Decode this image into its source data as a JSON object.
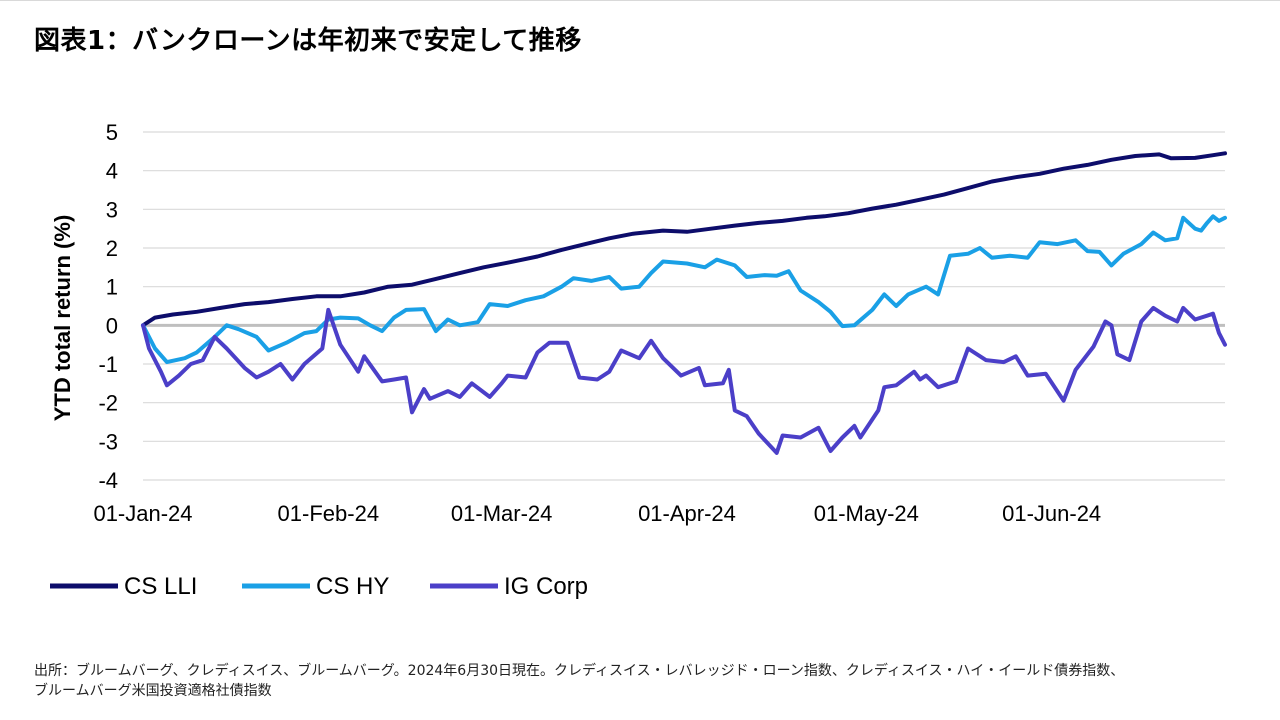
{
  "title": "図表1：バンクローンは年初来で安定して推移",
  "source_lines": [
    "出所：ブルームバーグ、クレディスイス、ブルームバーグ。2024年6月30日現在。クレディスイス・レバレッジド・ローン指数、クレディスイス・ハイ・イールド債券指数、",
    "ブルームバーグ米国投資適格社債指数"
  ],
  "chart_data": {
    "type": "line",
    "title": "図表1：バンクローンは年初来で安定して推移",
    "ylabel": "YTD total return (%)",
    "xlabel": "",
    "ylim": [
      -4,
      5
    ],
    "yticks": [
      -4,
      -3,
      -2,
      -1,
      0,
      1,
      2,
      3,
      4,
      5
    ],
    "xlim": [
      "2024-01-01",
      "2024-06-30"
    ],
    "xticks": [
      "01-Jan-24",
      "01-Feb-24",
      "01-Mar-24",
      "01-Apr-24",
      "01-May-24",
      "01-Jun-24"
    ],
    "grid": true,
    "legend_position": "bottom",
    "series": [
      {
        "name": "CS LLI",
        "color": "#0d0d6b",
        "points": [
          [
            "2024-01-01",
            0
          ],
          [
            "2024-01-03",
            0.2
          ],
          [
            "2024-01-06",
            0.28
          ],
          [
            "2024-01-10",
            0.35
          ],
          [
            "2024-01-14",
            0.45
          ],
          [
            "2024-01-18",
            0.55
          ],
          [
            "2024-01-22",
            0.6
          ],
          [
            "2024-01-26",
            0.68
          ],
          [
            "2024-01-30",
            0.75
          ],
          [
            "2024-02-03",
            0.75
          ],
          [
            "2024-02-07",
            0.85
          ],
          [
            "2024-02-11",
            1.0
          ],
          [
            "2024-02-15",
            1.05
          ],
          [
            "2024-02-19",
            1.2
          ],
          [
            "2024-02-23",
            1.35
          ],
          [
            "2024-02-27",
            1.5
          ],
          [
            "2024-03-02",
            1.62
          ],
          [
            "2024-03-07",
            1.78
          ],
          [
            "2024-03-11",
            1.95
          ],
          [
            "2024-03-15",
            2.1
          ],
          [
            "2024-03-19",
            2.25
          ],
          [
            "2024-03-23",
            2.37
          ],
          [
            "2024-03-28",
            2.45
          ],
          [
            "2024-04-01",
            2.42
          ],
          [
            "2024-04-05",
            2.5
          ],
          [
            "2024-04-09",
            2.58
          ],
          [
            "2024-04-13",
            2.65
          ],
          [
            "2024-04-17",
            2.7
          ],
          [
            "2024-04-21",
            2.78
          ],
          [
            "2024-04-24",
            2.82
          ],
          [
            "2024-04-28",
            2.9
          ],
          [
            "2024-05-02",
            3.02
          ],
          [
            "2024-05-06",
            3.12
          ],
          [
            "2024-05-10",
            3.25
          ],
          [
            "2024-05-14",
            3.38
          ],
          [
            "2024-05-18",
            3.55
          ],
          [
            "2024-05-22",
            3.72
          ],
          [
            "2024-05-26",
            3.83
          ],
          [
            "2024-05-30",
            3.92
          ],
          [
            "2024-06-03",
            4.05
          ],
          [
            "2024-06-07",
            4.15
          ],
          [
            "2024-06-11",
            4.28
          ],
          [
            "2024-06-15",
            4.38
          ],
          [
            "2024-06-19",
            4.42
          ],
          [
            "2024-06-21",
            4.32
          ],
          [
            "2024-06-25",
            4.33
          ],
          [
            "2024-06-28",
            4.4
          ],
          [
            "2024-06-30",
            4.45
          ]
        ]
      },
      {
        "name": "CS HY",
        "color": "#1aa0e6",
        "points": [
          [
            "2024-01-01",
            0
          ],
          [
            "2024-01-03",
            -0.6
          ],
          [
            "2024-01-05",
            -0.95
          ],
          [
            "2024-01-08",
            -0.85
          ],
          [
            "2024-01-10",
            -0.7
          ],
          [
            "2024-01-13",
            -0.3
          ],
          [
            "2024-01-15",
            0.0
          ],
          [
            "2024-01-17",
            -0.1
          ],
          [
            "2024-01-20",
            -0.3
          ],
          [
            "2024-01-22",
            -0.65
          ],
          [
            "2024-01-25",
            -0.45
          ],
          [
            "2024-01-28",
            -0.2
          ],
          [
            "2024-01-30",
            -0.15
          ],
          [
            "2024-02-01",
            0.15
          ],
          [
            "2024-02-03",
            0.2
          ],
          [
            "2024-02-06",
            0.18
          ],
          [
            "2024-02-08",
            0.0
          ],
          [
            "2024-02-10",
            -0.15
          ],
          [
            "2024-02-12",
            0.2
          ],
          [
            "2024-02-14",
            0.4
          ],
          [
            "2024-02-17",
            0.42
          ],
          [
            "2024-02-19",
            -0.15
          ],
          [
            "2024-02-21",
            0.15
          ],
          [
            "2024-02-23",
            0.0
          ],
          [
            "2024-02-26",
            0.08
          ],
          [
            "2024-02-28",
            0.55
          ],
          [
            "2024-03-02",
            0.5
          ],
          [
            "2024-03-05",
            0.65
          ],
          [
            "2024-03-08",
            0.75
          ],
          [
            "2024-03-11",
            1.0
          ],
          [
            "2024-03-13",
            1.22
          ],
          [
            "2024-03-16",
            1.15
          ],
          [
            "2024-03-19",
            1.25
          ],
          [
            "2024-03-21",
            0.95
          ],
          [
            "2024-03-24",
            1.0
          ],
          [
            "2024-03-26",
            1.35
          ],
          [
            "2024-03-28",
            1.65
          ],
          [
            "2024-04-01",
            1.6
          ],
          [
            "2024-04-04",
            1.5
          ],
          [
            "2024-04-06",
            1.7
          ],
          [
            "2024-04-09",
            1.55
          ],
          [
            "2024-04-11",
            1.25
          ],
          [
            "2024-04-14",
            1.3
          ],
          [
            "2024-04-16",
            1.28
          ],
          [
            "2024-04-18",
            1.4
          ],
          [
            "2024-04-20",
            0.9
          ],
          [
            "2024-04-23",
            0.6
          ],
          [
            "2024-04-25",
            0.35
          ],
          [
            "2024-04-27",
            -0.02
          ],
          [
            "2024-04-29",
            0.0
          ],
          [
            "2024-05-02",
            0.4
          ],
          [
            "2024-05-04",
            0.8
          ],
          [
            "2024-05-06",
            0.5
          ],
          [
            "2024-05-08",
            0.8
          ],
          [
            "2024-05-11",
            1.0
          ],
          [
            "2024-05-13",
            0.8
          ],
          [
            "2024-05-15",
            1.8
          ],
          [
            "2024-05-18",
            1.85
          ],
          [
            "2024-05-20",
            2.0
          ],
          [
            "2024-05-22",
            1.75
          ],
          [
            "2024-05-25",
            1.8
          ],
          [
            "2024-05-28",
            1.75
          ],
          [
            "2024-05-30",
            2.15
          ],
          [
            "2024-06-02",
            2.1
          ],
          [
            "2024-06-05",
            2.2
          ],
          [
            "2024-06-07",
            1.92
          ],
          [
            "2024-06-09",
            1.9
          ],
          [
            "2024-06-11",
            1.55
          ],
          [
            "2024-06-13",
            1.85
          ],
          [
            "2024-06-16",
            2.1
          ],
          [
            "2024-06-18",
            2.4
          ],
          [
            "2024-06-20",
            2.2
          ],
          [
            "2024-06-22",
            2.25
          ],
          [
            "2024-06-23",
            2.78
          ],
          [
            "2024-06-25",
            2.5
          ],
          [
            "2024-06-26",
            2.45
          ],
          [
            "2024-06-27",
            2.65
          ],
          [
            "2024-06-28",
            2.82
          ],
          [
            "2024-06-29",
            2.7
          ],
          [
            "2024-06-30",
            2.78
          ]
        ]
      },
      {
        "name": "IG Corp",
        "color": "#4b3fc8",
        "points": [
          [
            "2024-01-01",
            0
          ],
          [
            "2024-01-02",
            -0.6
          ],
          [
            "2024-01-04",
            -1.2
          ],
          [
            "2024-01-05",
            -1.55
          ],
          [
            "2024-01-07",
            -1.3
          ],
          [
            "2024-01-09",
            -1.0
          ],
          [
            "2024-01-11",
            -0.9
          ],
          [
            "2024-01-13",
            -0.3
          ],
          [
            "2024-01-15",
            -0.6
          ],
          [
            "2024-01-18",
            -1.1
          ],
          [
            "2024-01-20",
            -1.35
          ],
          [
            "2024-01-22",
            -1.2
          ],
          [
            "2024-01-24",
            -1.0
          ],
          [
            "2024-01-26",
            -1.4
          ],
          [
            "2024-01-28",
            -1.0
          ],
          [
            "2024-01-31",
            -0.6
          ],
          [
            "2024-02-01",
            0.4
          ],
          [
            "2024-02-03",
            -0.5
          ],
          [
            "2024-02-06",
            -1.2
          ],
          [
            "2024-02-07",
            -0.8
          ],
          [
            "2024-02-10",
            -1.45
          ],
          [
            "2024-02-12",
            -1.4
          ],
          [
            "2024-02-14",
            -1.35
          ],
          [
            "2024-02-15",
            -2.25
          ],
          [
            "2024-02-17",
            -1.65
          ],
          [
            "2024-02-18",
            -1.9
          ],
          [
            "2024-02-21",
            -1.7
          ],
          [
            "2024-02-23",
            -1.85
          ],
          [
            "2024-02-25",
            -1.5
          ],
          [
            "2024-02-28",
            -1.85
          ],
          [
            "2024-03-01",
            -1.5
          ],
          [
            "2024-03-02",
            -1.3
          ],
          [
            "2024-03-05",
            -1.35
          ],
          [
            "2024-03-07",
            -0.7
          ],
          [
            "2024-03-09",
            -0.45
          ],
          [
            "2024-03-12",
            -0.45
          ],
          [
            "2024-03-14",
            -1.35
          ],
          [
            "2024-03-17",
            -1.4
          ],
          [
            "2024-03-19",
            -1.2
          ],
          [
            "2024-03-21",
            -0.65
          ],
          [
            "2024-03-24",
            -0.85
          ],
          [
            "2024-03-26",
            -0.4
          ],
          [
            "2024-03-28",
            -0.85
          ],
          [
            "2024-03-31",
            -1.3
          ],
          [
            "2024-04-03",
            -1.1
          ],
          [
            "2024-04-04",
            -1.55
          ],
          [
            "2024-04-07",
            -1.5
          ],
          [
            "2024-04-08",
            -1.15
          ],
          [
            "2024-04-09",
            -2.2
          ],
          [
            "2024-04-11",
            -2.35
          ],
          [
            "2024-04-13",
            -2.8
          ],
          [
            "2024-04-16",
            -3.3
          ],
          [
            "2024-04-17",
            -2.85
          ],
          [
            "2024-04-20",
            -2.9
          ],
          [
            "2024-04-23",
            -2.65
          ],
          [
            "2024-04-25",
            -3.25
          ],
          [
            "2024-04-27",
            -2.9
          ],
          [
            "2024-04-29",
            -2.6
          ],
          [
            "2024-04-30",
            -2.9
          ],
          [
            "2024-05-03",
            -2.2
          ],
          [
            "2024-05-04",
            -1.6
          ],
          [
            "2024-05-06",
            -1.55
          ],
          [
            "2024-05-09",
            -1.2
          ],
          [
            "2024-05-10",
            -1.4
          ],
          [
            "2024-05-11",
            -1.3
          ],
          [
            "2024-05-13",
            -1.6
          ],
          [
            "2024-05-16",
            -1.45
          ],
          [
            "2024-05-18",
            -0.6
          ],
          [
            "2024-05-21",
            -0.9
          ],
          [
            "2024-05-24",
            -0.95
          ],
          [
            "2024-05-26",
            -0.8
          ],
          [
            "2024-05-28",
            -1.3
          ],
          [
            "2024-05-31",
            -1.25
          ],
          [
            "2024-06-03",
            -1.95
          ],
          [
            "2024-06-05",
            -1.15
          ],
          [
            "2024-06-08",
            -0.55
          ],
          [
            "2024-06-10",
            0.1
          ],
          [
            "2024-06-11",
            0.0
          ],
          [
            "2024-06-12",
            -0.75
          ],
          [
            "2024-06-14",
            -0.9
          ],
          [
            "2024-06-16",
            0.1
          ],
          [
            "2024-06-18",
            0.45
          ],
          [
            "2024-06-20",
            0.25
          ],
          [
            "2024-06-22",
            0.1
          ],
          [
            "2024-06-23",
            0.45
          ],
          [
            "2024-06-25",
            0.15
          ],
          [
            "2024-06-27",
            0.25
          ],
          [
            "2024-06-28",
            0.3
          ],
          [
            "2024-06-29",
            -0.2
          ],
          [
            "2024-06-30",
            -0.5
          ]
        ]
      }
    ]
  }
}
